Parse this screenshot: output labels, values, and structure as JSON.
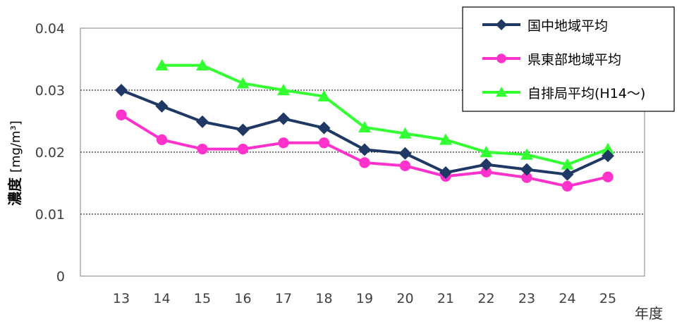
{
  "chart_data": {
    "type": "line",
    "xlabel": "年度",
    "ylabel": "濃度",
    "ylabel_unit": "[mg/m³]",
    "ylim": [
      0,
      0.04
    ],
    "y_ticks": [
      "0",
      "0.01",
      "0.02",
      "0.03",
      "0.04"
    ],
    "y_tick_values": [
      0,
      0.01,
      0.02,
      0.03,
      0.04
    ],
    "grid": "horizontal dotted",
    "legend_position": "top-right",
    "categories": [
      "13",
      "14",
      "15",
      "16",
      "17",
      "18",
      "19",
      "20",
      "21",
      "22",
      "23",
      "24",
      "25"
    ],
    "series": [
      {
        "name": "国中地域平均",
        "color": "#1f3864",
        "marker": "diamond",
        "values": [
          0.03,
          0.0274,
          0.0249,
          0.0236,
          0.0254,
          0.0239,
          0.0204,
          0.0198,
          0.0167,
          0.018,
          0.0172,
          0.0164,
          0.0194
        ]
      },
      {
        "name": "県東部地域平均",
        "color": "#ff33cc",
        "marker": "circle",
        "values": [
          0.026,
          0.022,
          0.0205,
          0.0205,
          0.0215,
          0.0215,
          0.0183,
          0.0178,
          0.0161,
          0.0168,
          0.0159,
          0.0145,
          0.016
        ]
      },
      {
        "name": "自排局平均(H14〜)",
        "color": "#33ff33",
        "marker": "triangle",
        "values": [
          null,
          0.034,
          0.034,
          0.0311,
          0.03,
          0.029,
          0.024,
          0.023,
          0.022,
          0.02,
          0.0196,
          0.018,
          0.0205
        ]
      }
    ]
  }
}
